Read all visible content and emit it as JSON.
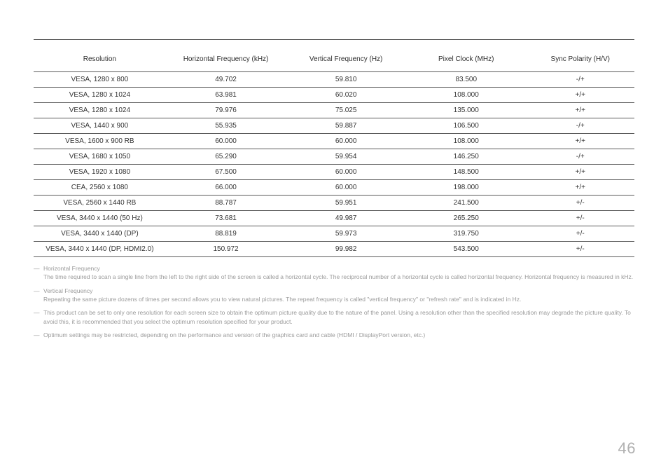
{
  "table": {
    "headers": [
      "Resolution",
      "Horizontal Frequency (kHz)",
      "Vertical Frequency (Hz)",
      "Pixel Clock (MHz)",
      "Sync Polarity (H/V)"
    ],
    "rows": [
      [
        "VESA, 1280 x 800",
        "49.702",
        "59.810",
        "83.500",
        "-/+"
      ],
      [
        "VESA, 1280 x 1024",
        "63.981",
        "60.020",
        "108.000",
        "+/+"
      ],
      [
        "VESA, 1280 x 1024",
        "79.976",
        "75.025",
        "135.000",
        "+/+"
      ],
      [
        "VESA, 1440 x 900",
        "55.935",
        "59.887",
        "106.500",
        "-/+"
      ],
      [
        "VESA, 1600 x 900 RB",
        "60.000",
        "60.000",
        "108.000",
        "+/+"
      ],
      [
        "VESA, 1680 x 1050",
        "65.290",
        "59.954",
        "146.250",
        "-/+"
      ],
      [
        "VESA, 1920 x 1080",
        "67.500",
        "60.000",
        "148.500",
        "+/+"
      ],
      [
        "CEA, 2560 x 1080",
        "66.000",
        "60.000",
        "198.000",
        "+/+"
      ],
      [
        "VESA, 2560 x 1440 RB",
        "88.787",
        "59.951",
        "241.500",
        "+/-"
      ],
      [
        "VESA, 3440 x 1440 (50 Hz)",
        "73.681",
        "49.987",
        "265.250",
        "+/-"
      ],
      [
        "VESA, 3440 x 1440 (DP)",
        "88.819",
        "59.973",
        "319.750",
        "+/-"
      ],
      [
        "VESA, 3440 x 1440 (DP, HDMI2.0)",
        "150.972",
        "99.982",
        "543.500",
        "+/-"
      ]
    ]
  },
  "notes": [
    {
      "title": "Horizontal Frequency",
      "text": "The time required to scan a single line from the left to the right side of the screen is called a horizontal cycle. The reciprocal number of a horizontal cycle is called horizontal frequency. Horizontal frequency is measured in kHz."
    },
    {
      "title": "Vertical Frequency",
      "text": "Repeating the same picture dozens of times per second allows you to view natural pictures. The repeat frequency is called \"vertical frequency\" or \"refresh rate\" and is indicated in Hz."
    },
    {
      "title": "",
      "text": "This product can be set to only one resolution for each screen size to obtain the optimum picture quality due to the nature of the panel. Using a resolution other than the specified resolution may degrade the picture quality. To avoid this, it is recommended that you select the optimum resolution specified for your product."
    },
    {
      "title": "",
      "text": "Optimum settings may be restricted, depending on the performance and version of the graphics card and cable (HDMI / DisplayPort version, etc.)"
    }
  ],
  "pageNumber": "46"
}
